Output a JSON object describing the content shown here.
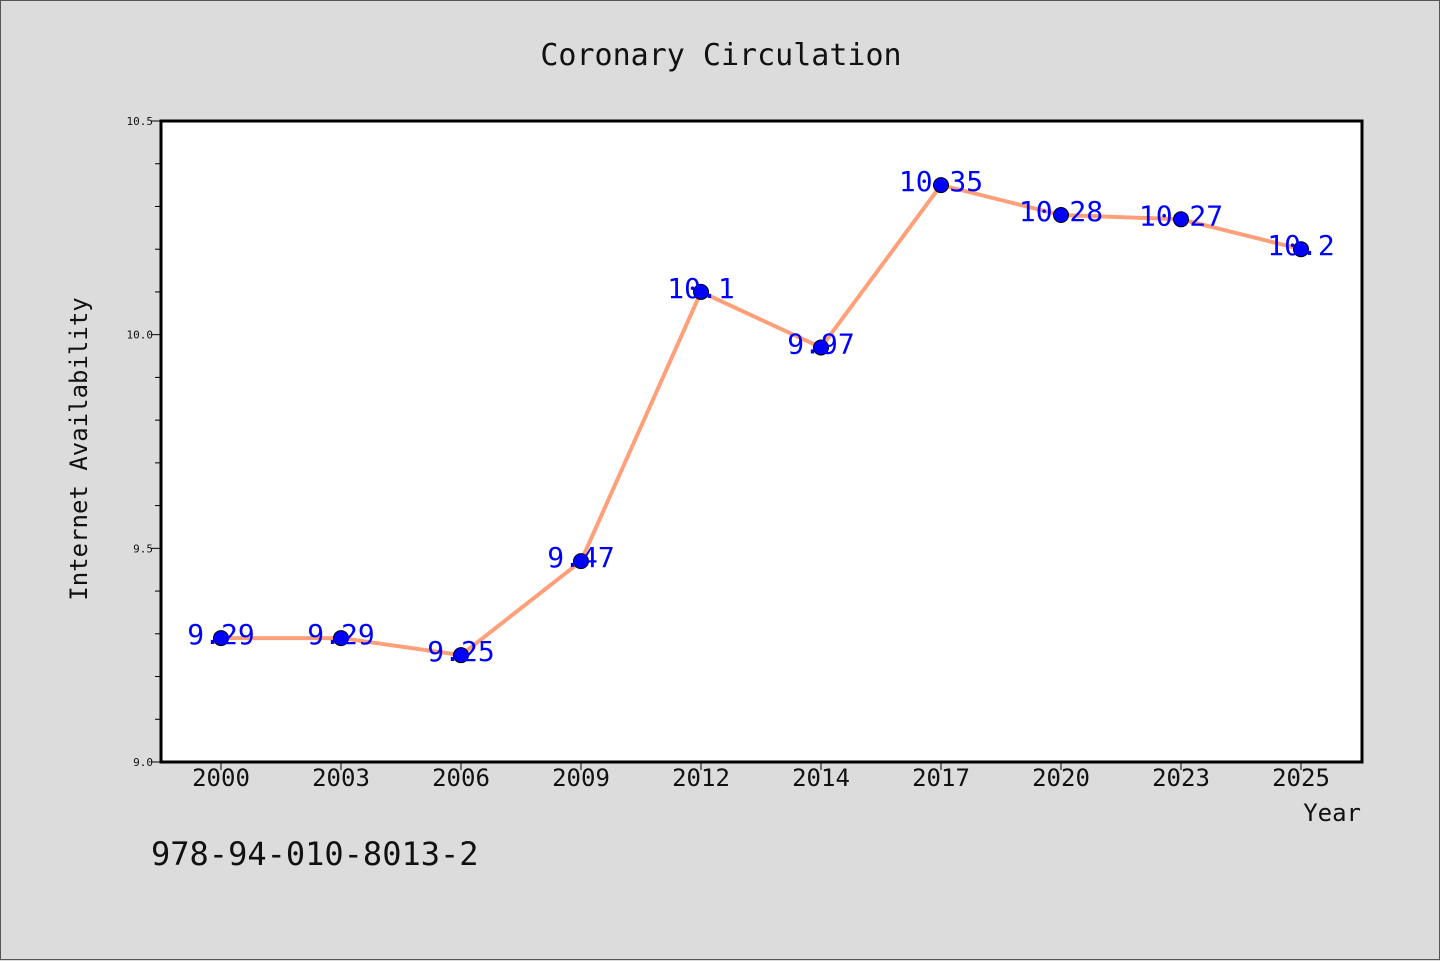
{
  "chart_data": {
    "type": "line",
    "title": "Coronary Circulation",
    "xlabel": "Year",
    "ylabel": "Internet Availability",
    "categories": [
      "2000",
      "2003",
      "2006",
      "2009",
      "2012",
      "2014",
      "2017",
      "2020",
      "2023",
      "2025"
    ],
    "series": [
      {
        "values": [
          9.29,
          9.29,
          9.25,
          9.47,
          10.1,
          9.97,
          10.35,
          10.28,
          10.27,
          10.2
        ],
        "labels": [
          "9.29",
          "9.29",
          "9.25",
          "9.47",
          "10.1",
          "9.97",
          "10.35",
          "10.28",
          "10.27",
          "10.2"
        ],
        "line_color": "#ffa07a",
        "marker_color": "#0000ff"
      }
    ],
    "ylim": [
      9.0,
      10.5
    ],
    "yticks": [
      "9.0",
      "9.5",
      "10.0",
      "10.5"
    ],
    "grid": false,
    "legend": false
  },
  "footer": {
    "code": "978-94-010-8013-2"
  },
  "colors": {
    "background": "#dcdcdc",
    "plot_background": "#ffffff",
    "data_label": "#0000ff"
  }
}
